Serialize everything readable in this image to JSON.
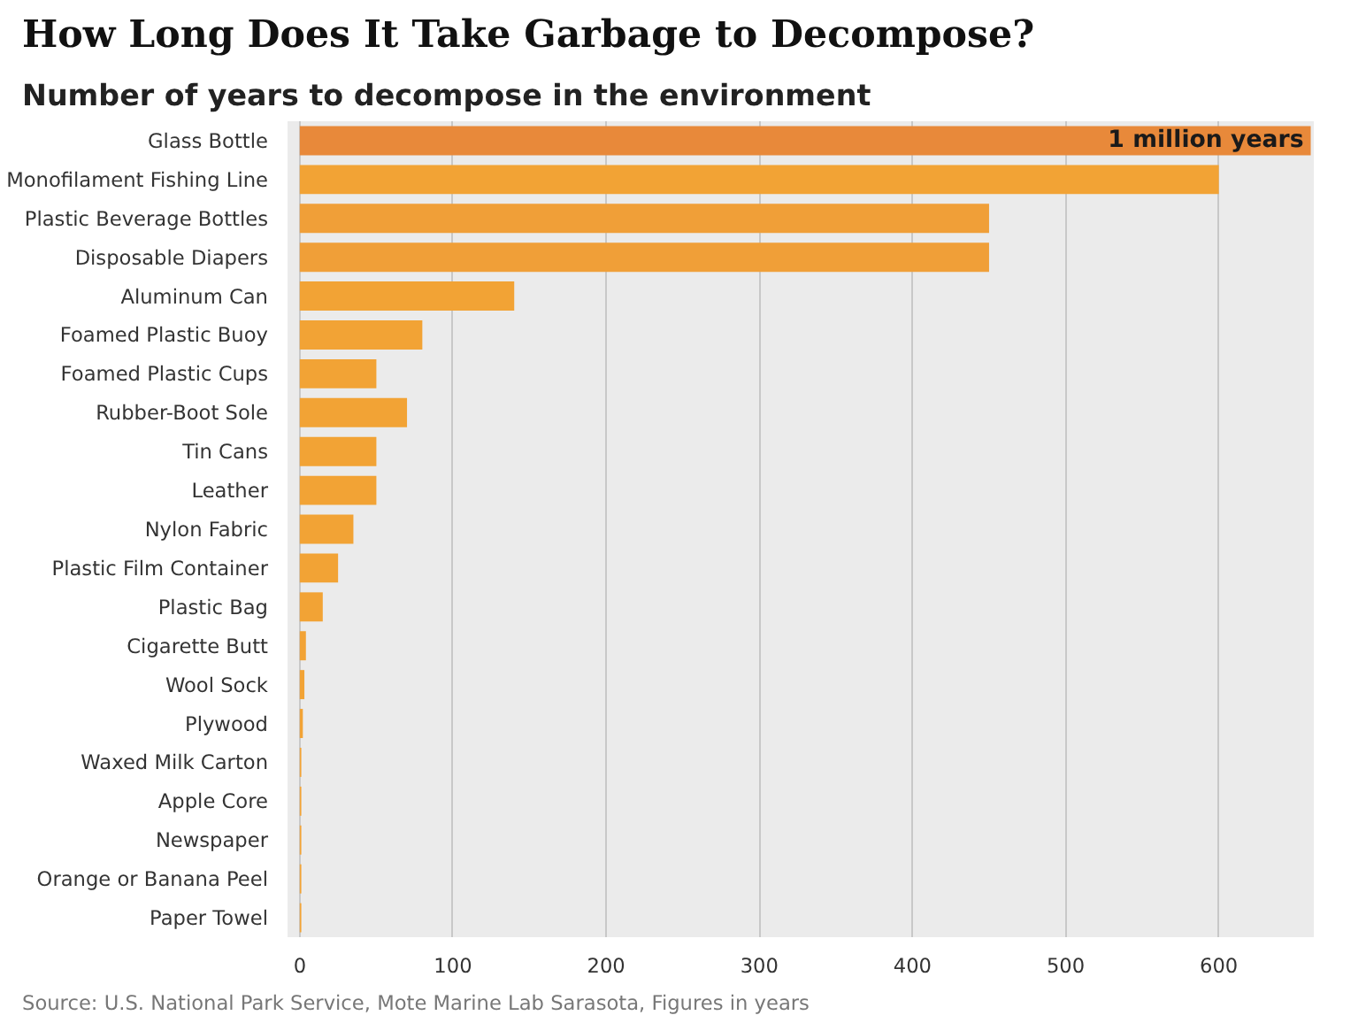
{
  "chart_data": {
    "type": "bar",
    "orientation": "horizontal",
    "title": "How Long Does It Take Garbage to Decompose?",
    "subtitle": "Number of years to decompose in the environment",
    "categories": [
      "Glass Bottle",
      "Monofilament Fishing Line",
      "Plastic Beverage Bottles",
      "Disposable Diapers",
      "Aluminum Can",
      "Foamed Plastic Buoy",
      "Foamed Plastic Cups",
      "Rubber-Boot Sole",
      "Tin Cans",
      "Leather",
      "Nylon Fabric",
      "Plastic Film Container",
      "Plastic Bag",
      "Cigarette Butt",
      "Wool Sock",
      "Plywood",
      "Waxed Milk Carton",
      "Apple Core",
      "Newspaper",
      "Orange or Banana Peel",
      "Paper Towel"
    ],
    "values": [
      660,
      600,
      450,
      450,
      140,
      80,
      50,
      70,
      50,
      50,
      35,
      25,
      15,
      4,
      3,
      2,
      1,
      1,
      1,
      1,
      1
    ],
    "colors": [
      "#e8893a",
      "#f2a335",
      "#f09f38",
      "#f09f38",
      "#f2a335",
      "#f2a335",
      "#f2a335",
      "#f2a335",
      "#f2a335",
      "#f2a335",
      "#f2a335",
      "#f2a335",
      "#f2a335",
      "#f2a335",
      "#f2a335",
      "#f2a335",
      "#f2a335",
      "#f2a335",
      "#f2a335",
      "#f2a335",
      "#f2a335"
    ],
    "xlim": [
      -8,
      662
    ],
    "xticks": [
      0,
      100,
      200,
      300,
      400,
      500,
      600
    ],
    "grid": "x",
    "annotations": [
      {
        "text": "1 million years",
        "x": 660,
        "y": "Glass Bottle"
      },
      "Source: U.S. National Park Service, Mote Marine Lab Sarasota, Figures in years"
    ]
  }
}
